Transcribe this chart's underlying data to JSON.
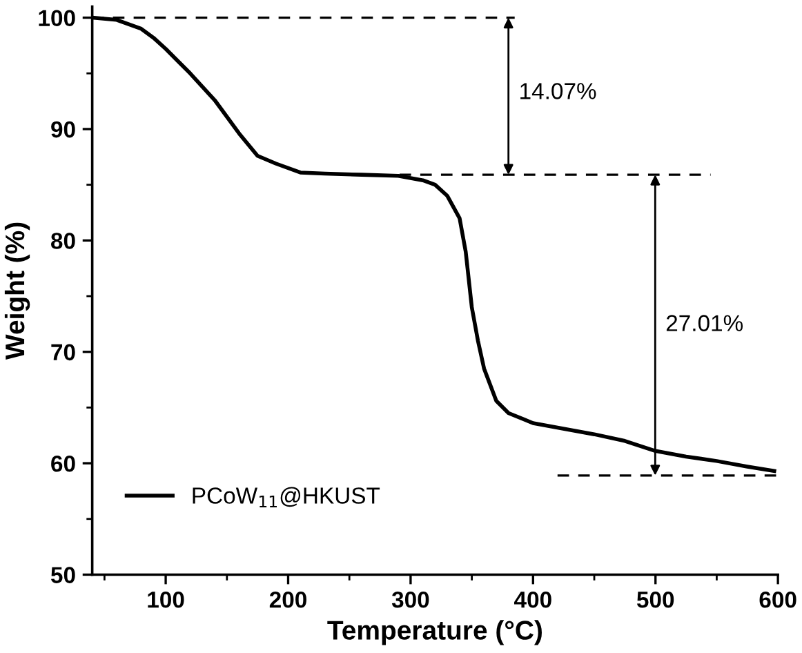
{
  "chart_data": {
    "type": "line",
    "xlabel": "Temperature (°C)",
    "ylabel": "Weight (%)",
    "xlim": [
      40,
      600
    ],
    "ylim": [
      50,
      101
    ],
    "xticks": [
      100,
      200,
      300,
      400,
      500,
      600
    ],
    "yticks": [
      50,
      60,
      70,
      80,
      90,
      100
    ],
    "grid": false,
    "legend": "bottom left",
    "marker": "none",
    "series": [
      {
        "name": "PCoW$_{11}$@HKUST",
        "color": "#000000",
        "line_style": "solid",
        "x": [
          40,
          60,
          80,
          90,
          100,
          120,
          140,
          160,
          175,
          190,
          210,
          230,
          260,
          290,
          310,
          320,
          330,
          340,
          345,
          350,
          355,
          360,
          370,
          380,
          400,
          430,
          450,
          475,
          500,
          525,
          550,
          575,
          597
        ],
        "values": [
          100,
          99.8,
          99,
          98.2,
          97.2,
          95,
          92.6,
          89.6,
          87.6,
          86.9,
          86.1,
          86.0,
          85.9,
          85.8,
          85.4,
          85,
          84,
          82,
          79,
          74,
          71,
          68.5,
          65.6,
          64.5,
          63.6,
          63.0,
          62.6,
          62.0,
          61.1,
          60.6,
          60.2,
          59.7,
          59.3
        ]
      },
      {
        "color": "#000000",
        "line_style": "dashed",
        "x": [
          40,
          385
        ],
        "values": [
          100,
          100
        ]
      },
      {
        "color": "#000000",
        "line_style": "dashed",
        "x": [
          291,
          545
        ],
        "values": [
          85.9,
          85.9
        ]
      },
      {
        "color": "#000000",
        "line_style": "dashed",
        "x": [
          420,
          600
        ],
        "values": [
          58.9,
          58.9
        ]
      }
    ],
    "annotations": [
      "14.07%",
      "27.01%"
    ]
  }
}
